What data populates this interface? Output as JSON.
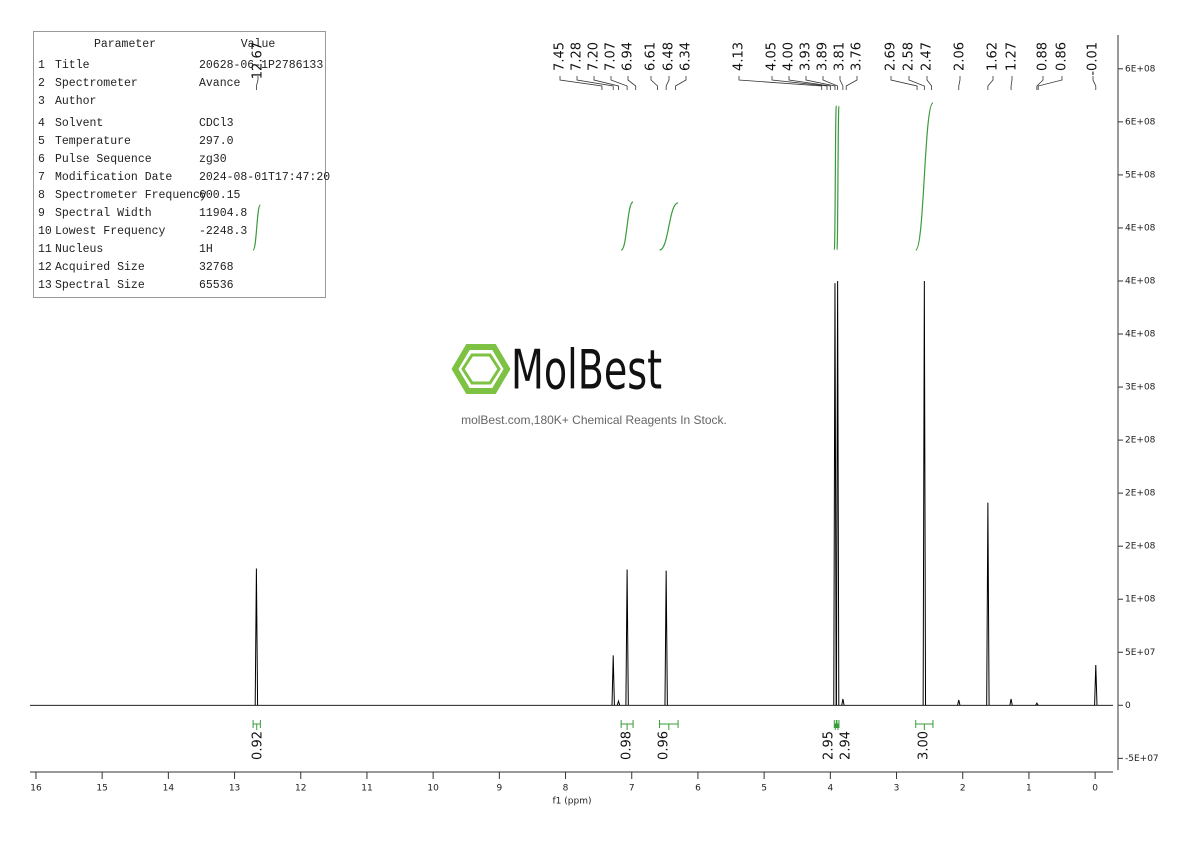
{
  "parameters": {
    "header": [
      "Parameter",
      "Value"
    ],
    "rows": [
      [
        "1",
        "Title",
        "20628-06-1P2786133"
      ],
      [
        "2",
        "Spectrometer",
        "Avance"
      ],
      [
        "3",
        "Author",
        ""
      ],
      [
        "4",
        "Solvent",
        "CDCl3"
      ],
      [
        "5",
        "Temperature",
        "297.0"
      ],
      [
        "6",
        "Pulse Sequence",
        "zg30"
      ],
      [
        "7",
        "Modification Date",
        "2024-08-01T17:47:20"
      ],
      [
        "8",
        "Spectrometer Frequency",
        "600.15"
      ],
      [
        "9",
        "Spectral Width",
        "11904.8"
      ],
      [
        "10",
        "Lowest Frequency",
        "-2248.3"
      ],
      [
        "11",
        "Nucleus",
        "1H"
      ],
      [
        "12",
        "Acquired Size",
        "32768"
      ],
      [
        "13",
        "Spectral Size",
        "65536"
      ]
    ]
  },
  "watermark": {
    "brand": "MolBest",
    "tagline": "molBest.com,180K+ Chemical Reagents In Stock."
  },
  "chart_data": {
    "type": "nmr",
    "xlabel": "f1 (ppm)",
    "xlim": [
      16.09,
      -0.27
    ],
    "xticks": [
      16,
      15,
      14,
      13,
      12,
      11,
      10,
      9,
      8,
      7,
      6,
      5,
      4,
      3,
      2,
      1,
      0
    ],
    "ylim": [
      -61000000,
      630000000
    ],
    "yticks": [
      {
        "value": -50000000,
        "label": "-5E+07"
      },
      0,
      {
        "value": 50000000,
        "label": "5E+07"
      },
      {
        "value": 100000000,
        "label": "1E+08"
      },
      {
        "value": 150000000,
        "label": "2E+08"
      },
      {
        "value": 200000000,
        "label": "2E+08"
      },
      {
        "value": 250000000,
        "label": "2E+08"
      },
      {
        "value": 300000000,
        "label": "3E+08"
      },
      {
        "value": 350000000,
        "label": "4E+08"
      },
      {
        "value": 400000000,
        "label": "4E+08"
      },
      {
        "value": 450000000,
        "label": "4E+08"
      },
      {
        "value": 500000000,
        "label": "5E+08"
      },
      {
        "value": 550000000,
        "label": "6E+08"
      },
      {
        "value": 600000000,
        "label": "6E+08"
      }
    ],
    "color": "#000000",
    "integral_color": "#3a9b3a",
    "peaks": {
      "ppm": [
        12.67,
        7.28,
        7.2,
        7.07,
        6.48,
        3.93,
        3.89,
        3.81,
        2.58,
        2.06,
        1.62,
        1.27,
        0.88,
        -0.01
      ],
      "heights": [
        129000000,
        47000000,
        4000000,
        128000000,
        127000000,
        398000000,
        400000000,
        6000000,
        400000000,
        5000000,
        191000000,
        6000000,
        2000000,
        38000000
      ]
    },
    "peak_labels": [
      12.67,
      7.45,
      7.28,
      {
        "value": 7.2,
        "label": "7.20"
      },
      7.07,
      6.94,
      6.61,
      6.48,
      6.34,
      4.13,
      4.05,
      {
        "value": 4,
        "label": "4.00"
      },
      3.93,
      3.89,
      3.81,
      3.76,
      2.69,
      2.58,
      2.47,
      2.06,
      1.62,
      1.27,
      0.88,
      0.86,
      -0.01
    ],
    "integrals": {
      "from": [
        12.72,
        7.16,
        6.58,
        3.94,
        3.9,
        2.71
      ],
      "to": [
        12.61,
        6.98,
        6.3,
        3.91,
        3.87,
        2.45
      ],
      "values": [
        0.92,
        0.98,
        0.96,
        2.95,
        2.94,
        3
      ],
      "value_labels": [
        "0.92",
        "0.98",
        "0.96",
        "2.95",
        "2.94",
        "3.00"
      ]
    }
  }
}
